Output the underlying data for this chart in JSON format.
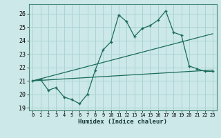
{
  "xlabel": "Humidex (Indice chaleur)",
  "bg_color": "#cce8e8",
  "grid_color": "#aad4d4",
  "line_color": "#1a6b5a",
  "xlim": [
    -0.5,
    23.5
  ],
  "ylim": [
    18.8,
    26.7
  ],
  "xticks": [
    0,
    1,
    2,
    3,
    4,
    5,
    6,
    7,
    8,
    9,
    10,
    11,
    12,
    13,
    14,
    15,
    16,
    17,
    18,
    19,
    20,
    21,
    22,
    23
  ],
  "yticks": [
    19,
    20,
    21,
    22,
    23,
    24,
    25,
    26
  ],
  "line1_x": [
    0,
    1,
    2,
    3,
    4,
    5,
    6,
    7,
    8,
    9,
    10,
    11,
    12,
    13,
    14,
    15,
    16,
    17,
    18,
    19,
    20,
    21,
    22,
    23
  ],
  "line1_y": [
    21.0,
    21.1,
    20.3,
    20.5,
    19.8,
    19.6,
    19.3,
    20.0,
    21.8,
    23.3,
    23.9,
    25.9,
    25.4,
    24.3,
    24.9,
    25.1,
    25.5,
    26.2,
    24.6,
    24.4,
    22.1,
    21.9,
    21.7,
    21.7
  ],
  "line2_x": [
    0,
    23
  ],
  "line2_y": [
    21.0,
    21.8
  ],
  "line3_x": [
    0,
    23
  ],
  "line3_y": [
    21.0,
    24.5
  ]
}
